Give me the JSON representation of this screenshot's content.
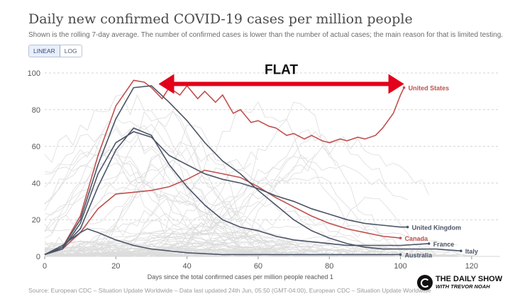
{
  "title": "Daily new confirmed COVID-19 cases per million people",
  "subtitle": "Shown is the rolling 7-day average. The number of confirmed cases is lower than the number of actual cases; the main reason for that is limited testing.",
  "toggle": {
    "linear": "LINEAR",
    "log": "LOG"
  },
  "footer": "Source: European CDC – Situation Update Worldwide – Data last updated 24th Jun, 05:50 (GMT-04:00), European CDC – Situation Update Worldwide",
  "logo": {
    "line1": "THE DAILY SHOW",
    "line2": "WITH TREVOR NOAH"
  },
  "colors": {
    "highlight": "#c0504d",
    "other": "#4b5466",
    "background_lines": "#d9d9d9",
    "annotation": "#e3001b"
  },
  "chart_data": {
    "type": "line",
    "title": "Daily new confirmed COVID-19 cases per million people",
    "xlabel": "Days since the total confirmed cases per million people reached 1",
    "ylabel": "",
    "xlim": [
      0,
      128
    ],
    "ylim": [
      0,
      100
    ],
    "x_ticks": [
      0,
      20,
      40,
      60,
      80,
      100,
      120
    ],
    "y_ticks": [
      0,
      20,
      40,
      60,
      80,
      100
    ],
    "grid": "horizontal-dashed",
    "annotation": {
      "text": "FLAT",
      "arrow_from_x": 32,
      "arrow_to_x": 101,
      "arrow_y": 94
    },
    "series": [
      {
        "name": "United States",
        "color": "#c0504d",
        "label_x": 101,
        "label_y": 92,
        "x": [
          0,
          5,
          10,
          15,
          20,
          25,
          28,
          30,
          33,
          35,
          38,
          40,
          43,
          45,
          48,
          50,
          53,
          55,
          58,
          60,
          63,
          65,
          68,
          70,
          73,
          75,
          78,
          80,
          83,
          85,
          88,
          90,
          93,
          95,
          98,
          100,
          101
        ],
        "y": [
          1,
          5,
          22,
          55,
          82,
          96,
          95,
          92,
          86,
          92,
          88,
          93,
          86,
          90,
          84,
          88,
          78,
          80,
          73,
          74,
          71,
          70,
          66,
          67,
          64,
          66,
          63,
          62,
          64,
          63,
          65,
          64,
          66,
          70,
          78,
          88,
          92
        ]
      },
      {
        "name": "Canada",
        "color": "#c0504d",
        "label_x": 100,
        "label_y": 10,
        "x": [
          0,
          5,
          10,
          15,
          20,
          25,
          30,
          35,
          40,
          45,
          50,
          55,
          60,
          65,
          70,
          75,
          80,
          85,
          90,
          95,
          100
        ],
        "y": [
          1,
          4,
          13,
          26,
          34,
          35,
          36,
          38,
          42,
          47,
          45,
          43,
          38,
          32,
          27,
          22,
          18,
          15,
          13,
          11,
          10
        ]
      },
      {
        "name": "United Kingdom",
        "color": "#4b5466",
        "label_x": 102,
        "label_y": 16,
        "x": [
          0,
          5,
          10,
          15,
          20,
          25,
          30,
          35,
          40,
          45,
          50,
          55,
          60,
          65,
          70,
          75,
          80,
          85,
          90,
          95,
          100,
          102
        ],
        "y": [
          1,
          4,
          18,
          45,
          62,
          68,
          65,
          55,
          50,
          45,
          42,
          40,
          37,
          33,
          30,
          26,
          23,
          20,
          18,
          17,
          16,
          16
        ]
      },
      {
        "name": "France",
        "color": "#4b5466",
        "label_x": 108,
        "label_y": 7,
        "x": [
          0,
          5,
          10,
          15,
          20,
          25,
          30,
          35,
          40,
          45,
          50,
          55,
          60,
          65,
          70,
          75,
          80,
          85,
          90,
          95,
          100,
          108
        ],
        "y": [
          1,
          5,
          15,
          38,
          58,
          70,
          66,
          50,
          38,
          28,
          20,
          16,
          14,
          11,
          9,
          8,
          7,
          6,
          6,
          6,
          6,
          7
        ]
      },
      {
        "name": "Italy",
        "color": "#4b5466",
        "label_x": 117,
        "label_y": 3,
        "x": [
          0,
          5,
          10,
          15,
          20,
          25,
          30,
          35,
          40,
          45,
          50,
          55,
          60,
          65,
          70,
          75,
          80,
          85,
          90,
          95,
          100,
          105,
          110,
          117
        ],
        "y": [
          1,
          5,
          20,
          50,
          75,
          92,
          93,
          84,
          74,
          62,
          52,
          45,
          36,
          28,
          20,
          14,
          10,
          7,
          5,
          4,
          4,
          4,
          4,
          3
        ]
      },
      {
        "name": "Australia",
        "color": "#4b5466",
        "label_x": 100,
        "label_y": 1,
        "x": [
          0,
          5,
          10,
          12,
          15,
          20,
          25,
          30,
          35,
          40,
          50,
          60,
          70,
          80,
          90,
          100
        ],
        "y": [
          1,
          6,
          13,
          15,
          13,
          9,
          6,
          4,
          3,
          2,
          1,
          1,
          1,
          1,
          1,
          1
        ]
      }
    ]
  }
}
